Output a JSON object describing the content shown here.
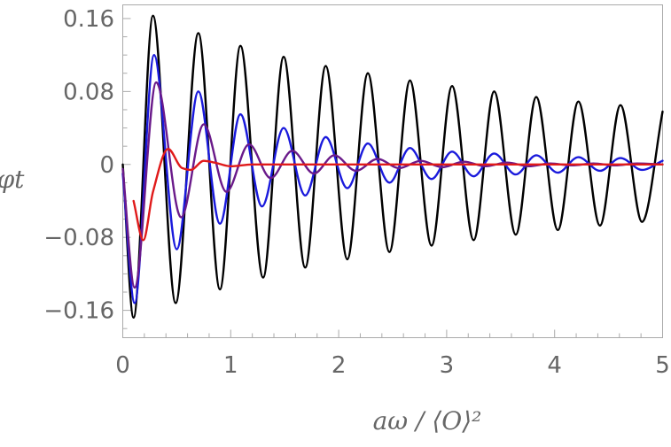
{
  "chart_data": {
    "type": "line",
    "title": "",
    "xlabel": "aω / ⟨O⟩²",
    "ylabel": "φt",
    "xlim": [
      0,
      5
    ],
    "ylim": [
      -0.19,
      0.175
    ],
    "x_ticks": [
      {
        "value": 0,
        "label": "0"
      },
      {
        "value": 1,
        "label": "1"
      },
      {
        "value": 2,
        "label": "2"
      },
      {
        "value": 3,
        "label": "3"
      },
      {
        "value": 4,
        "label": "4"
      },
      {
        "value": 5,
        "label": "5"
      }
    ],
    "y_ticks": [
      {
        "value": 0.16,
        "label": "0.16"
      },
      {
        "value": 0.08,
        "label": "0.08"
      },
      {
        "value": 0,
        "label": "0"
      },
      {
        "value": -0.08,
        "label": "−0.08"
      },
      {
        "value": -0.16,
        "label": "−0.16"
      }
    ],
    "grid": false,
    "legend": "none",
    "series": [
      {
        "color": "#000000",
        "x": [
          0.0,
          0.1,
          0.28,
          0.49,
          0.7,
          0.9,
          1.09,
          1.3,
          1.49,
          1.69,
          1.88,
          2.08,
          2.27,
          2.47,
          2.66,
          2.86,
          3.05,
          3.25,
          3.44,
          3.64,
          3.83,
          4.03,
          4.22,
          4.42,
          4.61,
          4.81,
          5.0
        ],
        "y": [
          0.0,
          -0.168,
          0.163,
          -0.152,
          0.144,
          -0.137,
          0.13,
          -0.124,
          0.118,
          -0.113,
          0.108,
          -0.104,
          0.1,
          -0.096,
          0.092,
          -0.089,
          0.086,
          -0.083,
          0.08,
          -0.077,
          0.074,
          -0.072,
          0.069,
          -0.067,
          0.065,
          -0.063,
          0.058
        ]
      },
      {
        "color": "#1a1adc",
        "x": [
          0.0,
          0.11,
          0.29,
          0.5,
          0.7,
          0.9,
          1.09,
          1.29,
          1.49,
          1.69,
          1.88,
          2.08,
          2.27,
          2.47,
          2.66,
          2.86,
          3.05,
          3.25,
          3.44,
          3.64,
          3.83,
          4.03,
          4.22,
          4.42,
          4.61,
          4.81,
          5.0
        ],
        "y": [
          -0.01,
          -0.152,
          0.12,
          -0.093,
          0.08,
          -0.065,
          0.055,
          -0.046,
          0.04,
          -0.034,
          0.03,
          -0.026,
          0.023,
          -0.02,
          0.018,
          -0.016,
          0.014,
          -0.013,
          0.012,
          -0.011,
          0.01,
          -0.009,
          0.008,
          -0.007,
          0.007,
          -0.006,
          0.004
        ]
      },
      {
        "color": "#6a1a8a",
        "x": [
          0.0,
          0.11,
          0.31,
          0.54,
          0.75,
          0.96,
          1.17,
          1.37,
          1.57,
          1.77,
          1.96,
          2.16,
          2.36,
          2.56,
          2.76,
          2.96,
          3.16,
          3.36,
          3.56,
          3.76,
          3.96,
          4.16,
          4.36,
          4.56,
          4.76,
          5.0
        ],
        "y": [
          -0.005,
          -0.135,
          0.09,
          -0.058,
          0.044,
          -0.03,
          0.022,
          -0.015,
          0.015,
          -0.01,
          0.01,
          -0.007,
          0.006,
          -0.004,
          0.004,
          -0.003,
          0.003,
          -0.002,
          0.002,
          -0.002,
          0.001,
          -0.001,
          0.001,
          -0.001,
          0.001,
          0.0
        ]
      },
      {
        "color": "#e01a1a",
        "x": [
          0.1,
          0.19,
          0.28,
          0.42,
          0.55,
          0.63,
          0.75,
          0.85,
          1.0,
          1.2,
          1.5,
          2.0,
          2.5,
          3.0,
          3.5,
          4.0,
          4.5,
          5.0
        ],
        "y": [
          -0.04,
          -0.083,
          -0.03,
          0.017,
          -0.004,
          -0.006,
          0.004,
          0.002,
          -0.002,
          0.0,
          0.0,
          0.0,
          0.0,
          0.0,
          0.0,
          0.0,
          0.0,
          0.0
        ]
      }
    ]
  }
}
